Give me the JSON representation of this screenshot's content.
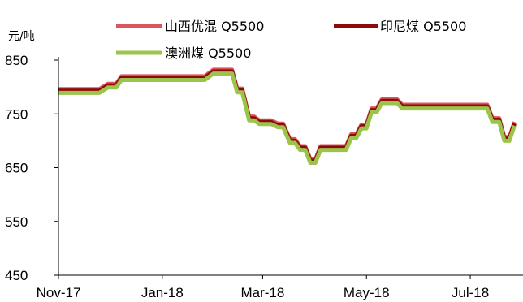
{
  "chart_data": {
    "type": "line",
    "title": "",
    "ylabel": "元/吨",
    "xlabel": "",
    "ylim": [
      450,
      850
    ],
    "yticks": [
      "450",
      "550",
      "650",
      "750",
      "850"
    ],
    "xlim": [
      "2017-11-01",
      "2018-08-01"
    ],
    "xticks": [
      {
        "label": "Nov-17",
        "date": "2017-11-01"
      },
      {
        "label": "Jan-18",
        "date": "2018-01-01"
      },
      {
        "label": "Mar-18",
        "date": "2018-03-01"
      },
      {
        "label": "May-18",
        "date": "2018-05-01"
      },
      {
        "label": "Jul-18",
        "date": "2018-07-01"
      }
    ],
    "grid": false,
    "legend_position": "top",
    "series": [
      {
        "name": "山西优混 Q5500",
        "color": "#d9575a",
        "x": [
          "2017-11-01",
          "2017-11-25",
          "2017-11-30",
          "2017-12-05",
          "2017-12-08",
          "2017-12-27",
          "2017-12-30",
          "2018-01-26",
          "2018-01-31",
          "2018-02-05",
          "2018-02-08",
          "2018-02-11",
          "2018-02-14",
          "2018-02-17",
          "2018-02-21",
          "2018-02-24",
          "2018-02-27",
          "2018-03-06",
          "2018-03-10",
          "2018-03-13",
          "2018-03-17",
          "2018-03-20",
          "2018-03-23",
          "2018-03-26",
          "2018-03-29",
          "2018-04-01",
          "2018-04-04",
          "2018-04-19",
          "2018-04-22",
          "2018-04-25",
          "2018-04-28",
          "2018-05-01",
          "2018-05-04",
          "2018-05-07",
          "2018-05-10",
          "2018-05-19",
          "2018-05-22",
          "2018-06-24",
          "2018-06-27",
          "2018-07-11",
          "2018-07-14",
          "2018-07-18",
          "2018-07-21",
          "2018-07-24",
          "2018-07-27"
        ],
        "y": [
          796,
          796,
          806,
          806,
          820,
          820,
          820,
          820,
          832,
          832,
          832,
          832,
          797,
          797,
          745,
          745,
          738,
          738,
          732,
          732,
          703,
          703,
          690,
          690,
          666,
          666,
          690,
          690,
          712,
          712,
          730,
          730,
          760,
          760,
          777,
          777,
          767,
          767,
          767,
          767,
          742,
          742,
          707,
          707,
          735
        ]
      },
      {
        "name": "印尼煤 Q5500",
        "color": "#8b0a0a",
        "x": [
          "2017-11-01",
          "2017-11-25",
          "2017-11-30",
          "2017-12-05",
          "2017-12-08",
          "2017-12-27",
          "2017-12-30",
          "2018-01-26",
          "2018-01-31",
          "2018-02-05",
          "2018-02-08",
          "2018-02-11",
          "2018-02-14",
          "2018-02-17",
          "2018-02-21",
          "2018-02-24",
          "2018-02-27",
          "2018-03-06",
          "2018-03-10",
          "2018-03-13",
          "2018-03-17",
          "2018-03-20",
          "2018-03-23",
          "2018-03-26",
          "2018-03-29",
          "2018-04-01",
          "2018-04-04",
          "2018-04-19",
          "2018-04-22",
          "2018-04-25",
          "2018-04-28",
          "2018-05-01",
          "2018-05-04",
          "2018-05-07",
          "2018-05-10",
          "2018-05-19",
          "2018-05-22",
          "2018-06-24",
          "2018-06-27",
          "2018-07-11",
          "2018-07-14",
          "2018-07-18",
          "2018-07-21",
          "2018-07-24",
          "2018-07-27"
        ],
        "y": [
          793,
          793,
          803,
          803,
          817,
          817,
          817,
          817,
          829,
          829,
          829,
          829,
          794,
          794,
          742,
          742,
          735,
          735,
          729,
          729,
          700,
          700,
          687,
          687,
          663,
          663,
          687,
          687,
          709,
          709,
          727,
          727,
          757,
          757,
          774,
          774,
          764,
          764,
          764,
          764,
          739,
          739,
          704,
          704,
          732
        ]
      },
      {
        "name": "澳洲煤 Q5500",
        "color": "#9bc44a",
        "x": [
          "2017-11-01",
          "2017-11-25",
          "2017-11-30",
          "2017-12-05",
          "2017-12-08",
          "2017-12-27",
          "2017-12-30",
          "2018-01-26",
          "2018-01-31",
          "2018-02-05",
          "2018-02-08",
          "2018-02-11",
          "2018-02-14",
          "2018-02-17",
          "2018-02-21",
          "2018-02-24",
          "2018-02-27",
          "2018-03-06",
          "2018-03-10",
          "2018-03-13",
          "2018-03-17",
          "2018-03-20",
          "2018-03-23",
          "2018-03-26",
          "2018-03-29",
          "2018-04-01",
          "2018-04-04",
          "2018-04-19",
          "2018-04-22",
          "2018-04-25",
          "2018-04-28",
          "2018-05-01",
          "2018-05-04",
          "2018-05-07",
          "2018-05-10",
          "2018-05-19",
          "2018-05-22",
          "2018-06-24",
          "2018-06-27",
          "2018-07-11",
          "2018-07-14",
          "2018-07-18",
          "2018-07-21",
          "2018-07-24",
          "2018-07-27"
        ],
        "y": [
          789,
          789,
          799,
          799,
          813,
          813,
          813,
          813,
          825,
          825,
          825,
          825,
          790,
          790,
          738,
          738,
          731,
          731,
          725,
          725,
          696,
          696,
          683,
          683,
          659,
          659,
          683,
          683,
          705,
          705,
          723,
          723,
          753,
          753,
          770,
          770,
          760,
          760,
          760,
          760,
          735,
          735,
          700,
          700,
          728
        ]
      }
    ]
  }
}
